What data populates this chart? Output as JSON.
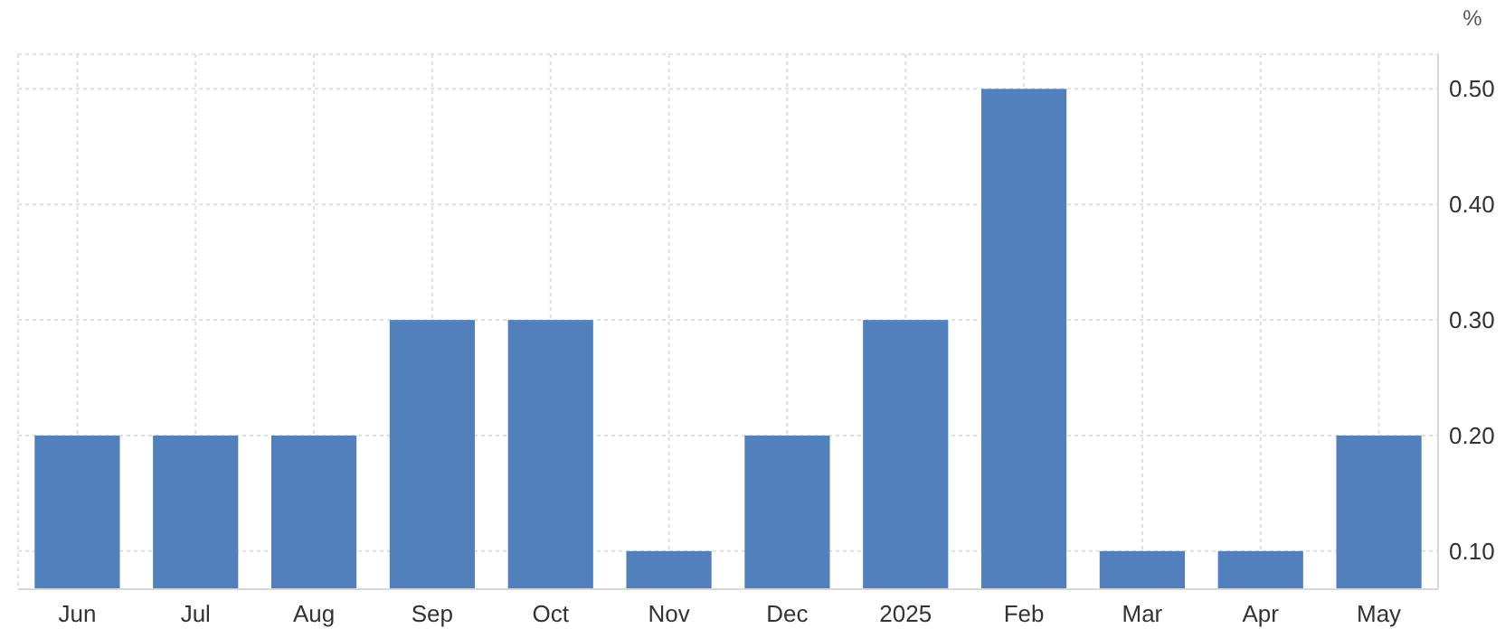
{
  "chart_data": {
    "type": "bar",
    "ylabel": "%",
    "categories": [
      "Jun",
      "Jul",
      "Aug",
      "Sep",
      "Oct",
      "Nov",
      "Dec",
      "2025",
      "Feb",
      "Mar",
      "Apr",
      "May"
    ],
    "values": [
      0.2,
      0.2,
      0.2,
      0.3,
      0.3,
      0.1,
      0.2,
      0.3,
      0.5,
      0.1,
      0.1,
      0.2
    ],
    "color": "#5280bd",
    "ylim": [
      0.067,
      0.53
    ],
    "yticks": [
      {
        "value": 0.1,
        "label": "0.10"
      },
      {
        "value": 0.2,
        "label": "0.20"
      },
      {
        "value": 0.3,
        "label": "0.30"
      },
      {
        "value": 0.4,
        "label": "0.40"
      },
      {
        "value": 0.5,
        "label": "0.50"
      }
    ],
    "grid": true
  }
}
